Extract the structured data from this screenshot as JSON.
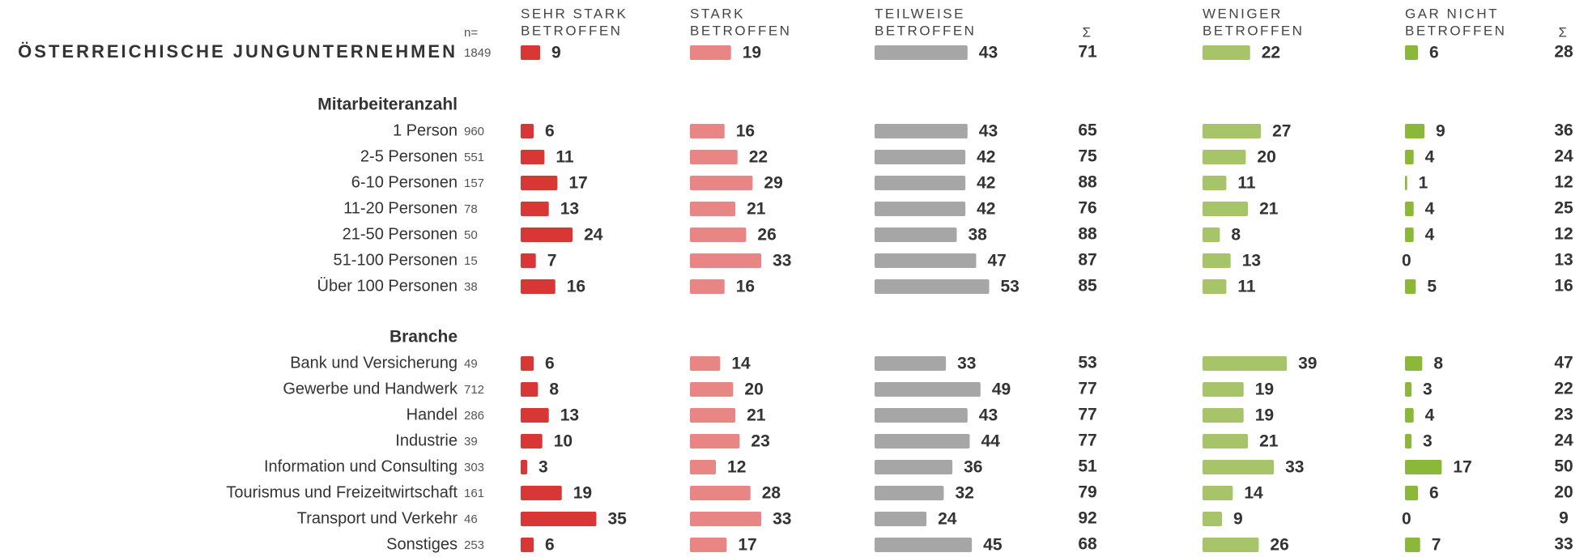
{
  "header": {
    "n": "n=",
    "columns": [
      [
        "SEHR STARK",
        "BETROFFEN"
      ],
      [
        "STARK",
        "BETROFFEN"
      ],
      [
        "TEILWEISE",
        "BETROFFEN"
      ],
      [
        "Σ"
      ],
      [
        "WENIGER",
        "BETROFFEN"
      ],
      [
        "GAR NICHT",
        "BETROFFEN"
      ],
      [
        "Σ"
      ]
    ]
  },
  "colors": [
    "#d93636",
    "#e88585",
    "#a6a6a6",
    null,
    "#a8c46a",
    "#8cb83a",
    null
  ],
  "total": {
    "label": "ÖSTERREICHISCHE JUNGUNTERNEHMEN",
    "n": 1849,
    "values": [
      9,
      19,
      43,
      71,
      22,
      6,
      28
    ]
  },
  "groups": [
    {
      "title": "Mitarbeiteranzahl",
      "rows": [
        {
          "label": "1 Person",
          "n": 960,
          "values": [
            6,
            16,
            43,
            65,
            27,
            9,
            36
          ]
        },
        {
          "label": "2-5 Personen",
          "n": 551,
          "values": [
            11,
            22,
            42,
            75,
            20,
            4,
            24
          ]
        },
        {
          "label": "6-10 Personen",
          "n": 157,
          "values": [
            17,
            29,
            42,
            88,
            11,
            1,
            12
          ]
        },
        {
          "label": "11-20 Personen",
          "n": 78,
          "values": [
            13,
            21,
            42,
            76,
            21,
            4,
            25
          ]
        },
        {
          "label": "21-50 Personen",
          "n": 50,
          "values": [
            24,
            26,
            38,
            88,
            8,
            4,
            12
          ]
        },
        {
          "label": "51-100 Personen",
          "n": 15,
          "values": [
            7,
            33,
            47,
            87,
            13,
            0,
            13
          ]
        },
        {
          "label": "Über 100 Personen",
          "n": 38,
          "values": [
            16,
            16,
            53,
            85,
            11,
            5,
            16
          ]
        }
      ]
    },
    {
      "title": "Branche",
      "rows": [
        {
          "label": "Bank und Versicherung",
          "n": 49,
          "values": [
            6,
            14,
            33,
            53,
            39,
            8,
            47
          ]
        },
        {
          "label": "Gewerbe und Handwerk",
          "n": 712,
          "values": [
            8,
            20,
            49,
            77,
            19,
            3,
            22
          ]
        },
        {
          "label": "Handel",
          "n": 286,
          "values": [
            13,
            21,
            43,
            77,
            19,
            4,
            23
          ]
        },
        {
          "label": "Industrie",
          "n": 39,
          "values": [
            10,
            23,
            44,
            77,
            21,
            3,
            24
          ]
        },
        {
          "label": "Information und Consulting",
          "n": 303,
          "values": [
            3,
            12,
            36,
            51,
            33,
            17,
            50
          ]
        },
        {
          "label": "Tourismus und Freizeitwirtschaft",
          "n": 161,
          "values": [
            19,
            28,
            32,
            79,
            14,
            6,
            20
          ]
        },
        {
          "label": "Transport und Verkehr",
          "n": 46,
          "values": [
            35,
            33,
            24,
            92,
            9,
            0,
            9
          ]
        },
        {
          "label": "Sonstiges",
          "n": 253,
          "values": [
            6,
            17,
            45,
            68,
            26,
            7,
            33
          ]
        }
      ]
    }
  ]
}
